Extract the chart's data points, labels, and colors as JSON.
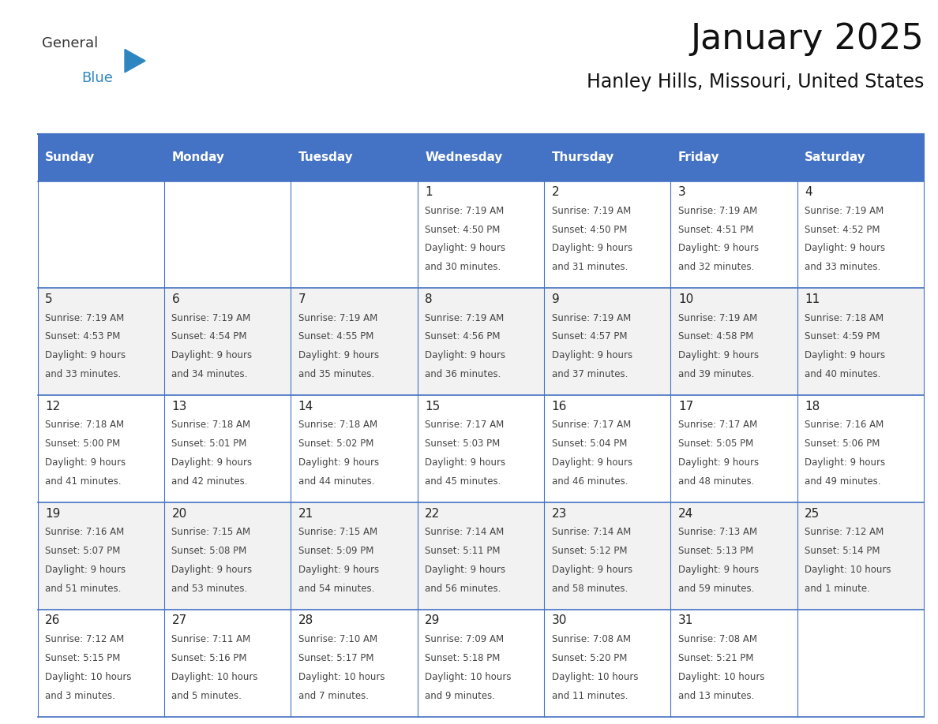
{
  "title": "January 2025",
  "subtitle": "Hanley Hills, Missouri, United States",
  "header_bg": "#4472C4",
  "header_text_color": "#FFFFFF",
  "day_names": [
    "Sunday",
    "Monday",
    "Tuesday",
    "Wednesday",
    "Thursday",
    "Friday",
    "Saturday"
  ],
  "row_bg_even": "#FFFFFF",
  "row_bg_odd": "#F2F2F2",
  "cell_border_color": "#4472C4",
  "text_color": "#333333",
  "logo_general_color": "#333333",
  "logo_blue_color": "#2E86C1",
  "calendar": [
    [
      null,
      null,
      null,
      {
        "day": 1,
        "sunrise": "7:19 AM",
        "sunset": "4:50 PM",
        "daylight_l1": "9 hours",
        "daylight_l2": "and 30 minutes."
      },
      {
        "day": 2,
        "sunrise": "7:19 AM",
        "sunset": "4:50 PM",
        "daylight_l1": "9 hours",
        "daylight_l2": "and 31 minutes."
      },
      {
        "day": 3,
        "sunrise": "7:19 AM",
        "sunset": "4:51 PM",
        "daylight_l1": "9 hours",
        "daylight_l2": "and 32 minutes."
      },
      {
        "day": 4,
        "sunrise": "7:19 AM",
        "sunset": "4:52 PM",
        "daylight_l1": "9 hours",
        "daylight_l2": "and 33 minutes."
      }
    ],
    [
      {
        "day": 5,
        "sunrise": "7:19 AM",
        "sunset": "4:53 PM",
        "daylight_l1": "9 hours",
        "daylight_l2": "and 33 minutes."
      },
      {
        "day": 6,
        "sunrise": "7:19 AM",
        "sunset": "4:54 PM",
        "daylight_l1": "9 hours",
        "daylight_l2": "and 34 minutes."
      },
      {
        "day": 7,
        "sunrise": "7:19 AM",
        "sunset": "4:55 PM",
        "daylight_l1": "9 hours",
        "daylight_l2": "and 35 minutes."
      },
      {
        "day": 8,
        "sunrise": "7:19 AM",
        "sunset": "4:56 PM",
        "daylight_l1": "9 hours",
        "daylight_l2": "and 36 minutes."
      },
      {
        "day": 9,
        "sunrise": "7:19 AM",
        "sunset": "4:57 PM",
        "daylight_l1": "9 hours",
        "daylight_l2": "and 37 minutes."
      },
      {
        "day": 10,
        "sunrise": "7:19 AM",
        "sunset": "4:58 PM",
        "daylight_l1": "9 hours",
        "daylight_l2": "and 39 minutes."
      },
      {
        "day": 11,
        "sunrise": "7:18 AM",
        "sunset": "4:59 PM",
        "daylight_l1": "9 hours",
        "daylight_l2": "and 40 minutes."
      }
    ],
    [
      {
        "day": 12,
        "sunrise": "7:18 AM",
        "sunset": "5:00 PM",
        "daylight_l1": "9 hours",
        "daylight_l2": "and 41 minutes."
      },
      {
        "day": 13,
        "sunrise": "7:18 AM",
        "sunset": "5:01 PM",
        "daylight_l1": "9 hours",
        "daylight_l2": "and 42 minutes."
      },
      {
        "day": 14,
        "sunrise": "7:18 AM",
        "sunset": "5:02 PM",
        "daylight_l1": "9 hours",
        "daylight_l2": "and 44 minutes."
      },
      {
        "day": 15,
        "sunrise": "7:17 AM",
        "sunset": "5:03 PM",
        "daylight_l1": "9 hours",
        "daylight_l2": "and 45 minutes."
      },
      {
        "day": 16,
        "sunrise": "7:17 AM",
        "sunset": "5:04 PM",
        "daylight_l1": "9 hours",
        "daylight_l2": "and 46 minutes."
      },
      {
        "day": 17,
        "sunrise": "7:17 AM",
        "sunset": "5:05 PM",
        "daylight_l1": "9 hours",
        "daylight_l2": "and 48 minutes."
      },
      {
        "day": 18,
        "sunrise": "7:16 AM",
        "sunset": "5:06 PM",
        "daylight_l1": "9 hours",
        "daylight_l2": "and 49 minutes."
      }
    ],
    [
      {
        "day": 19,
        "sunrise": "7:16 AM",
        "sunset": "5:07 PM",
        "daylight_l1": "9 hours",
        "daylight_l2": "and 51 minutes."
      },
      {
        "day": 20,
        "sunrise": "7:15 AM",
        "sunset": "5:08 PM",
        "daylight_l1": "9 hours",
        "daylight_l2": "and 53 minutes."
      },
      {
        "day": 21,
        "sunrise": "7:15 AM",
        "sunset": "5:09 PM",
        "daylight_l1": "9 hours",
        "daylight_l2": "and 54 minutes."
      },
      {
        "day": 22,
        "sunrise": "7:14 AM",
        "sunset": "5:11 PM",
        "daylight_l1": "9 hours",
        "daylight_l2": "and 56 minutes."
      },
      {
        "day": 23,
        "sunrise": "7:14 AM",
        "sunset": "5:12 PM",
        "daylight_l1": "9 hours",
        "daylight_l2": "and 58 minutes."
      },
      {
        "day": 24,
        "sunrise": "7:13 AM",
        "sunset": "5:13 PM",
        "daylight_l1": "9 hours",
        "daylight_l2": "and 59 minutes."
      },
      {
        "day": 25,
        "sunrise": "7:12 AM",
        "sunset": "5:14 PM",
        "daylight_l1": "10 hours",
        "daylight_l2": "and 1 minute."
      }
    ],
    [
      {
        "day": 26,
        "sunrise": "7:12 AM",
        "sunset": "5:15 PM",
        "daylight_l1": "10 hours",
        "daylight_l2": "and 3 minutes."
      },
      {
        "day": 27,
        "sunrise": "7:11 AM",
        "sunset": "5:16 PM",
        "daylight_l1": "10 hours",
        "daylight_l2": "and 5 minutes."
      },
      {
        "day": 28,
        "sunrise": "7:10 AM",
        "sunset": "5:17 PM",
        "daylight_l1": "10 hours",
        "daylight_l2": "and 7 minutes."
      },
      {
        "day": 29,
        "sunrise": "7:09 AM",
        "sunset": "5:18 PM",
        "daylight_l1": "10 hours",
        "daylight_l2": "and 9 minutes."
      },
      {
        "day": 30,
        "sunrise": "7:08 AM",
        "sunset": "5:20 PM",
        "daylight_l1": "10 hours",
        "daylight_l2": "and 11 minutes."
      },
      {
        "day": 31,
        "sunrise": "7:08 AM",
        "sunset": "5:21 PM",
        "daylight_l1": "10 hours",
        "daylight_l2": "and 13 minutes."
      },
      null
    ]
  ]
}
